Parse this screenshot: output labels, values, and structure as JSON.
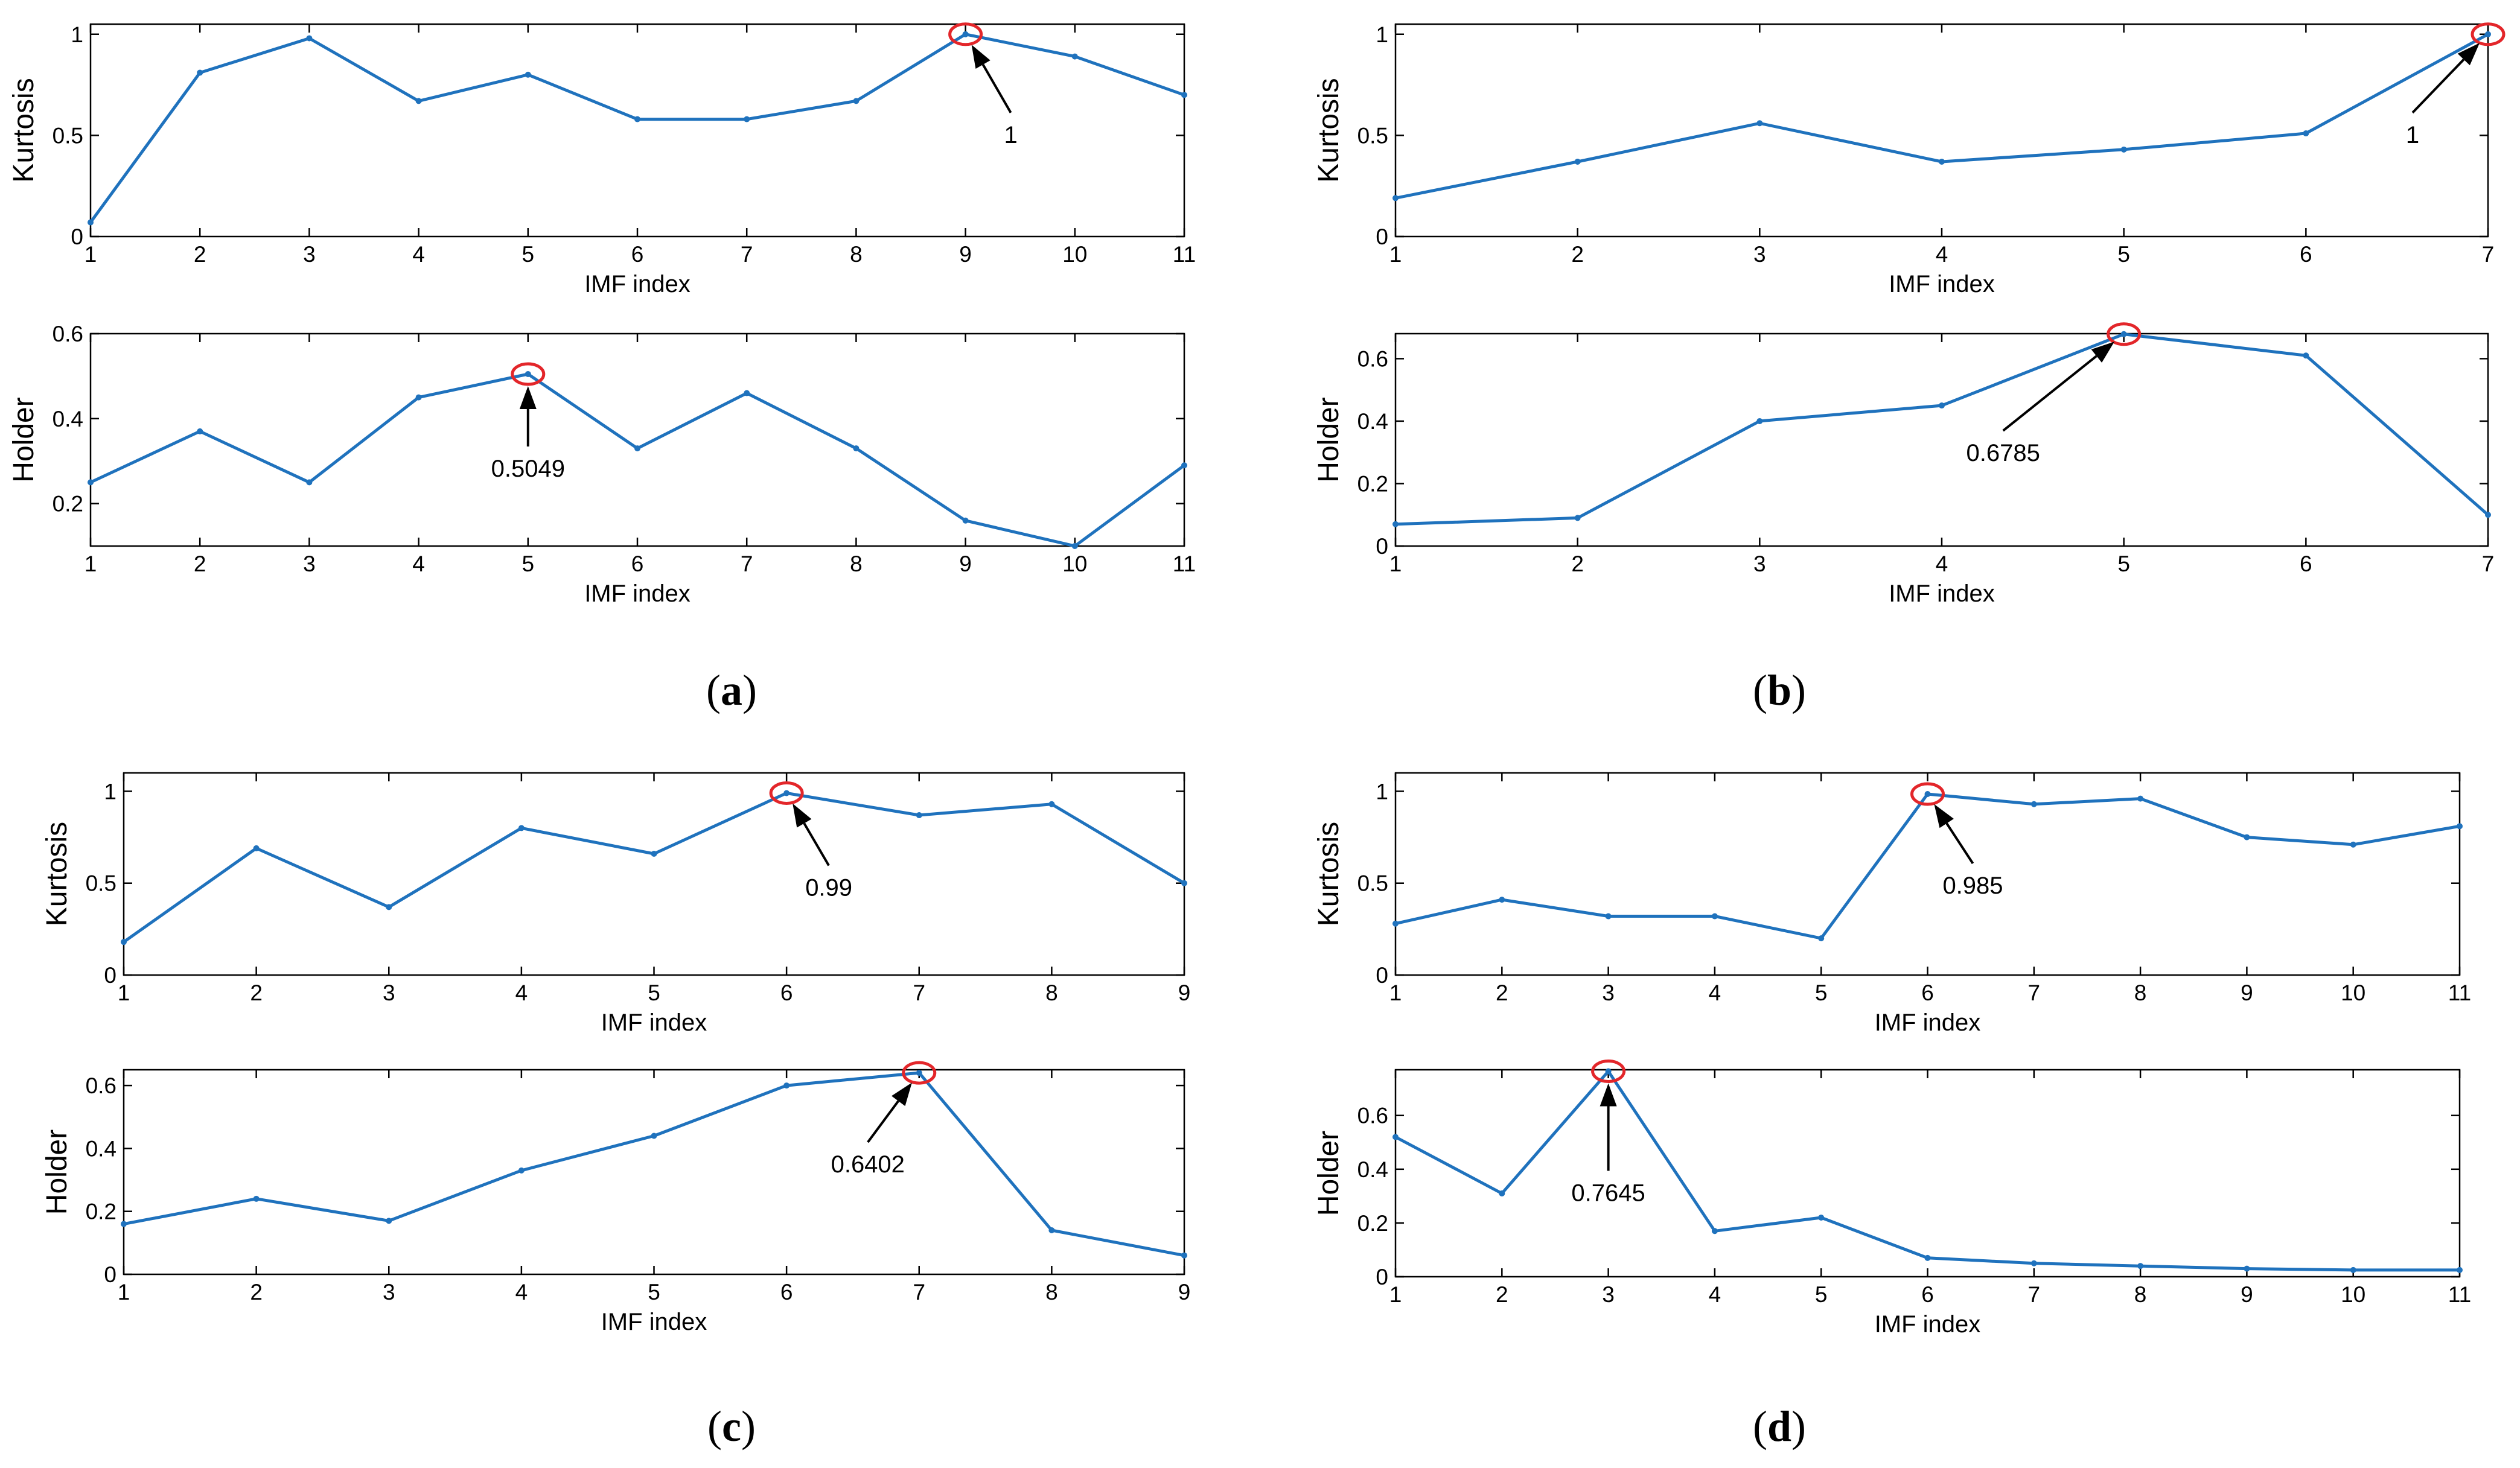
{
  "chart_data": [
    {
      "type": "line",
      "panel": "a",
      "plot": "top",
      "title": "",
      "xlabel": "IMF index",
      "ylabel": "Kurtosis",
      "x": [
        1,
        2,
        3,
        4,
        5,
        6,
        7,
        8,
        9,
        10,
        11
      ],
      "xticks": [
        1,
        2,
        3,
        4,
        5,
        6,
        7,
        8,
        9,
        10,
        11
      ],
      "values": [
        0.07,
        0.81,
        0.98,
        0.67,
        0.8,
        0.58,
        0.58,
        0.67,
        1.0,
        0.89,
        0.7
      ],
      "ylim": [
        0,
        1.05
      ],
      "yticks": [
        0,
        0.5,
        1
      ],
      "ytick_labels": [
        "0",
        "0.5",
        "1"
      ],
      "grid": false,
      "annotation": {
        "text": "1",
        "x": 9,
        "y": 1.0
      }
    },
    {
      "type": "line",
      "panel": "a",
      "plot": "bottom",
      "title": "",
      "xlabel": "IMF index",
      "ylabel": "Holder",
      "x": [
        1,
        2,
        3,
        4,
        5,
        6,
        7,
        8,
        9,
        10,
        11
      ],
      "xticks": [
        1,
        2,
        3,
        4,
        5,
        6,
        7,
        8,
        9,
        10,
        11
      ],
      "values": [
        0.25,
        0.37,
        0.25,
        0.45,
        0.5049,
        0.33,
        0.46,
        0.33,
        0.16,
        0.1,
        0.29
      ],
      "ylim": [
        0.1,
        0.6
      ],
      "yticks": [
        0.2,
        0.4,
        0.6
      ],
      "ytick_labels": [
        "0.2",
        "0.4",
        "0.6"
      ],
      "grid": false,
      "annotation": {
        "text": "0.5049",
        "x": 5,
        "y": 0.5049
      }
    },
    {
      "type": "line",
      "panel": "b",
      "plot": "top",
      "title": "",
      "xlabel": "IMF index",
      "ylabel": "Kurtosis",
      "x": [
        1,
        2,
        3,
        4,
        5,
        6,
        7
      ],
      "xticks": [
        1,
        2,
        3,
        4,
        5,
        6,
        7
      ],
      "values": [
        0.19,
        0.37,
        0.56,
        0.37,
        0.43,
        0.51,
        1.0
      ],
      "ylim": [
        0,
        1.05
      ],
      "yticks": [
        0,
        0.5,
        1
      ],
      "ytick_labels": [
        "0",
        "0.5",
        "1"
      ],
      "grid": false,
      "annotation": {
        "text": "1",
        "x": 7,
        "y": 1.0
      }
    },
    {
      "type": "line",
      "panel": "b",
      "plot": "bottom",
      "title": "",
      "xlabel": "IMF index",
      "ylabel": "Holder",
      "x": [
        1,
        2,
        3,
        4,
        5,
        6,
        7
      ],
      "xticks": [
        1,
        2,
        3,
        4,
        5,
        6,
        7
      ],
      "values": [
        0.07,
        0.09,
        0.4,
        0.45,
        0.6785,
        0.61,
        0.1
      ],
      "ylim": [
        0,
        0.68
      ],
      "yticks": [
        0,
        0.2,
        0.4,
        0.6
      ],
      "ytick_labels": [
        "0",
        "0.2",
        "0.4",
        "0.6"
      ],
      "grid": false,
      "annotation": {
        "text": "0.6785",
        "x": 5,
        "y": 0.6785
      }
    },
    {
      "type": "line",
      "panel": "c",
      "plot": "top",
      "title": "",
      "xlabel": "IMF index",
      "ylabel": "Kurtosis",
      "x": [
        1,
        2,
        3,
        4,
        5,
        6,
        7,
        8,
        9
      ],
      "xticks": [
        1,
        2,
        3,
        4,
        5,
        6,
        7,
        8,
        9
      ],
      "values": [
        0.18,
        0.69,
        0.37,
        0.8,
        0.66,
        0.99,
        0.87,
        0.93,
        0.5
      ],
      "ylim": [
        0,
        1.1
      ],
      "yticks": [
        0,
        0.5,
        1
      ],
      "ytick_labels": [
        "0",
        "0.5",
        "1"
      ],
      "grid": false,
      "annotation": {
        "text": "0.99",
        "x": 6,
        "y": 0.99
      }
    },
    {
      "type": "line",
      "panel": "c",
      "plot": "bottom",
      "title": "",
      "xlabel": "IMF index",
      "ylabel": "Holder",
      "x": [
        1,
        2,
        3,
        4,
        5,
        6,
        7,
        8,
        9
      ],
      "xticks": [
        1,
        2,
        3,
        4,
        5,
        6,
        7,
        8,
        9
      ],
      "values": [
        0.16,
        0.24,
        0.17,
        0.33,
        0.44,
        0.6,
        0.6402,
        0.14,
        0.06
      ],
      "ylim": [
        0,
        0.65
      ],
      "yticks": [
        0,
        0.2,
        0.4,
        0.6
      ],
      "ytick_labels": [
        "0",
        "0.2",
        "0.4",
        "0.6"
      ],
      "grid": false,
      "annotation": {
        "text": "0.6402",
        "x": 7,
        "y": 0.6402
      }
    },
    {
      "type": "line",
      "panel": "d",
      "plot": "top",
      "title": "",
      "xlabel": "IMF index",
      "ylabel": "Kurtosis",
      "x": [
        1,
        2,
        3,
        4,
        5,
        6,
        7,
        8,
        9,
        10,
        11
      ],
      "xticks": [
        1,
        2,
        3,
        4,
        5,
        6,
        7,
        8,
        9,
        10,
        11
      ],
      "values": [
        0.28,
        0.41,
        0.32,
        0.32,
        0.2,
        0.985,
        0.93,
        0.96,
        0.75,
        0.71,
        0.81
      ],
      "ylim": [
        0,
        1.1
      ],
      "yticks": [
        0,
        0.5,
        1
      ],
      "ytick_labels": [
        "0",
        "0.5",
        "1"
      ],
      "grid": false,
      "annotation": {
        "text": "0.985",
        "x": 6,
        "y": 0.985
      }
    },
    {
      "type": "line",
      "panel": "d",
      "plot": "bottom",
      "title": "",
      "xlabel": "IMF index",
      "ylabel": "Holder",
      "x": [
        1,
        2,
        3,
        4,
        5,
        6,
        7,
        8,
        9,
        10,
        11
      ],
      "xticks": [
        1,
        2,
        3,
        4,
        5,
        6,
        7,
        8,
        9,
        10,
        11
      ],
      "values": [
        0.52,
        0.31,
        0.7645,
        0.17,
        0.22,
        0.07,
        0.05,
        0.04,
        0.03,
        0.025,
        0.025
      ],
      "ylim": [
        0,
        0.77
      ],
      "yticks": [
        0,
        0.2,
        0.4,
        0.6
      ],
      "ytick_labels": [
        "0",
        "0.2",
        "0.4",
        "0.6"
      ],
      "grid": false,
      "annotation": {
        "text": "0.7645",
        "x": 3,
        "y": 0.7645
      }
    }
  ],
  "panels": [
    {
      "id": "a",
      "caption_open": "(",
      "caption_letter": "a",
      "caption_close": ")"
    },
    {
      "id": "b",
      "caption_open": "(",
      "caption_letter": "b",
      "caption_close": ")"
    },
    {
      "id": "c",
      "caption_open": "(",
      "caption_letter": "c",
      "caption_close": ")"
    },
    {
      "id": "d",
      "caption_open": "(",
      "caption_letter": "d",
      "caption_close": ")"
    }
  ],
  "colors": {
    "series": "#1f72bd",
    "highlight": "#e3262a",
    "axis": "#000000"
  }
}
